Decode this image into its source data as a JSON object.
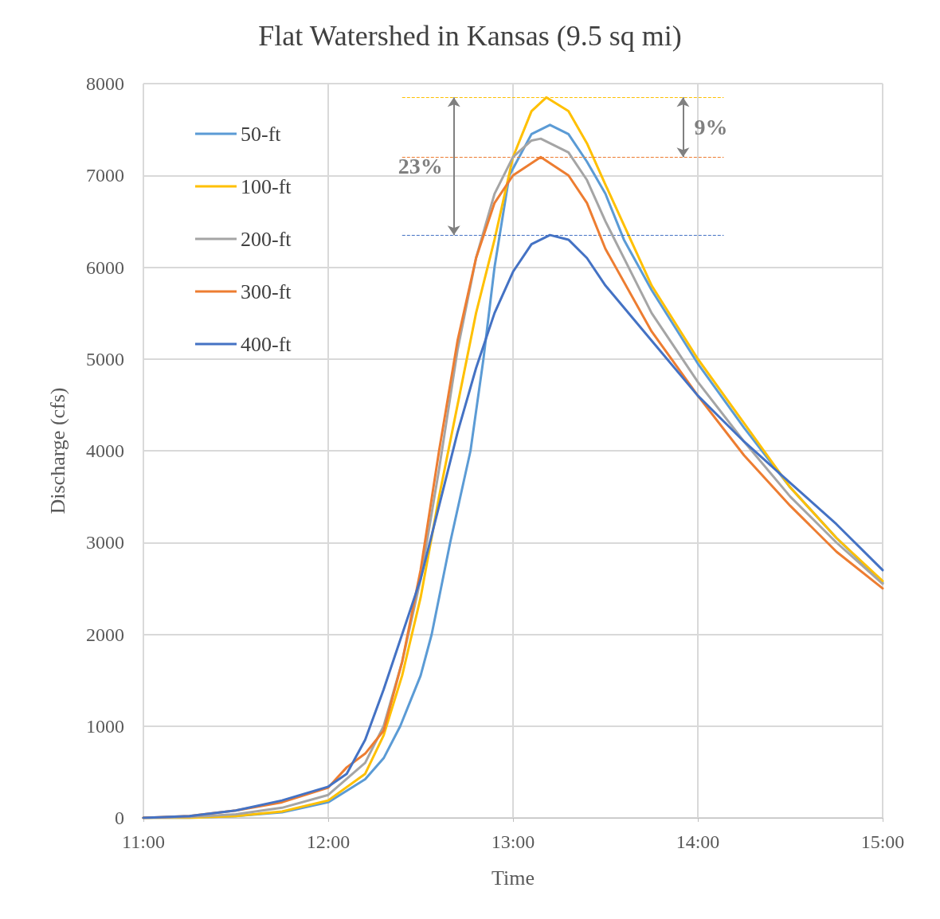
{
  "chart_data": {
    "type": "line",
    "title": "Flat Watershed in Kansas (9.5 sq mi)",
    "xlabel": "Time",
    "ylabel": "Discharge (cfs)",
    "xlim": [
      11,
      15
    ],
    "xticks": [
      {
        "value": 11,
        "label": "11:00"
      },
      {
        "value": 12,
        "label": "12:00"
      },
      {
        "value": 13,
        "label": "13:00"
      },
      {
        "value": 14,
        "label": "14:00"
      },
      {
        "value": 15,
        "label": "15:00"
      }
    ],
    "ylim": [
      0,
      8000
    ],
    "yticks": [
      0,
      1000,
      2000,
      3000,
      4000,
      5000,
      6000,
      7000,
      8000
    ],
    "grid": true,
    "legend": "top left",
    "marker": "none",
    "line_style": "solid",
    "series": [
      {
        "name": "50-ft",
        "color": "#5b9bd5",
        "x": [
          11,
          11.25,
          11.5,
          11.75,
          12,
          12.2,
          12.3,
          12.39,
          12.5,
          12.56,
          12.66,
          12.77,
          12.84,
          12.9,
          12.98,
          13.1,
          13.2,
          13.3,
          13.4,
          13.5,
          13.6,
          13.75,
          14,
          14.25,
          14.5,
          14.75,
          15
        ],
        "values": [
          0,
          0,
          20,
          60,
          170,
          420,
          650,
          1000,
          1550,
          2000,
          3000,
          4000,
          5000,
          6000,
          7000,
          7450,
          7550,
          7450,
          7150,
          6800,
          6300,
          5750,
          4950,
          4250,
          3600,
          3050,
          2560
        ]
      },
      {
        "name": "100-ft",
        "color": "#ffc000",
        "x": [
          11,
          11.25,
          11.5,
          11.75,
          12,
          12.2,
          12.3,
          12.4,
          12.5,
          12.6,
          12.7,
          12.8,
          12.9,
          13,
          13.1,
          13.18,
          13.3,
          13.4,
          13.5,
          13.75,
          14,
          14.25,
          14.5,
          14.75,
          15
        ],
        "values": [
          0,
          0,
          20,
          70,
          190,
          480,
          900,
          1550,
          2400,
          3500,
          4500,
          5500,
          6300,
          7200,
          7700,
          7850,
          7700,
          7350,
          6900,
          5800,
          5000,
          4300,
          3600,
          3050,
          2580
        ]
      },
      {
        "name": "200-ft",
        "color": "#a5a5a5",
        "x": [
          11,
          11.25,
          11.5,
          11.75,
          12,
          12.2,
          12.3,
          12.4,
          12.5,
          12.6,
          12.7,
          12.8,
          12.9,
          13,
          13.1,
          13.15,
          13.3,
          13.4,
          13.5,
          13.75,
          14,
          14.25,
          14.5,
          14.75,
          15
        ],
        "values": [
          0,
          10,
          40,
          110,
          250,
          600,
          1000,
          1700,
          2600,
          3800,
          5100,
          6100,
          6800,
          7200,
          7380,
          7400,
          7250,
          6950,
          6500,
          5500,
          4750,
          4100,
          3500,
          3000,
          2550
        ]
      },
      {
        "name": "300-ft",
        "color": "#ed7d31",
        "x": [
          11,
          11.25,
          11.5,
          11.75,
          12,
          12.1,
          12.2,
          12.3,
          12.4,
          12.5,
          12.6,
          12.7,
          12.8,
          12.9,
          13,
          13.15,
          13.3,
          13.4,
          13.5,
          13.75,
          14,
          14.25,
          14.5,
          14.75,
          15
        ],
        "values": [
          0,
          20,
          80,
          170,
          330,
          550,
          700,
          950,
          1700,
          2700,
          4000,
          5200,
          6100,
          6700,
          7000,
          7200,
          7000,
          6700,
          6200,
          5300,
          4600,
          3950,
          3400,
          2900,
          2500
        ]
      },
      {
        "name": "400-ft",
        "color": "#4472c4",
        "x": [
          11,
          11.25,
          11.5,
          11.75,
          12,
          12.1,
          12.2,
          12.3,
          12.4,
          12.5,
          12.6,
          12.7,
          12.8,
          12.9,
          13,
          13.1,
          13.2,
          13.3,
          13.4,
          13.5,
          13.75,
          14,
          14.25,
          14.5,
          14.75,
          15
        ],
        "values": [
          0,
          20,
          80,
          190,
          340,
          480,
          850,
          1400,
          2000,
          2600,
          3400,
          4200,
          4900,
          5500,
          5950,
          6250,
          6350,
          6300,
          6100,
          5800,
          5200,
          4600,
          4100,
          3650,
          3200,
          2700
        ]
      }
    ],
    "ref_lines": [
      {
        "axis": "y",
        "value": 7850,
        "color": "#ffc000",
        "line_style": "dashed"
      },
      {
        "axis": "y",
        "value": 7200,
        "color": "#ed7d31",
        "line_style": "dashed"
      },
      {
        "axis": "y",
        "value": 6350,
        "color": "#4472c4",
        "line_style": "dashed"
      }
    ],
    "annotations": [
      "23%",
      "9%"
    ]
  }
}
